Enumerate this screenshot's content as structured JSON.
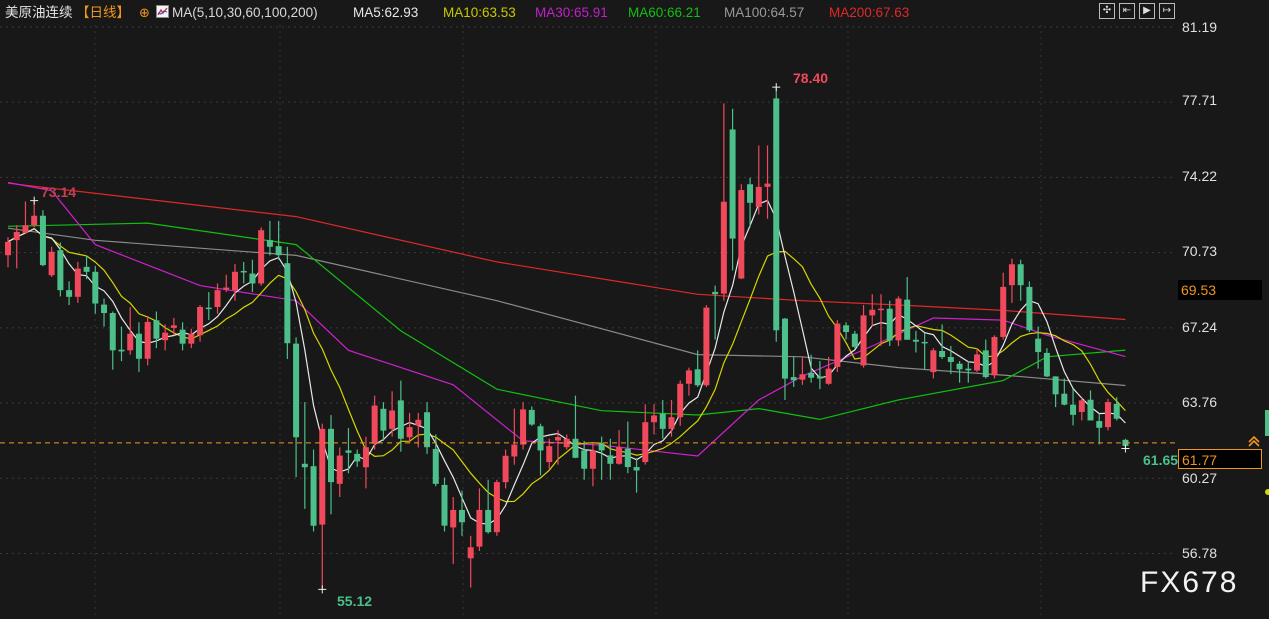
{
  "header": {
    "instrument": "美原油连续",
    "period": "【日线】",
    "period_icon": "circle-plus-icon",
    "indicator_icon": "chart-indicator-icon",
    "indicator": "MA(5,10,30,60,100,200)",
    "ma5": "MA5:62.93",
    "ma10": "MA10:63.53",
    "ma30": "MA30:65.91",
    "ma60": "MA60:66.21",
    "ma100": "MA100:64.57",
    "ma200": "MA200:67.63"
  },
  "toolbar": {
    "icons": [
      "crosshair-icon",
      "zoom-range-icon",
      "play-forward-icon",
      "exit-icon"
    ]
  },
  "colors": {
    "up": "#f0495b",
    "down": "#4cbf8a",
    "ma5": "#e8e8e8",
    "ma10": "#d6d600",
    "ma30": "#d020d0",
    "ma60": "#10c010",
    "ma100": "#8a8a8a",
    "ma200": "#e02828",
    "last_price": "#f0961e"
  },
  "watermark": "FX678",
  "chart_data": {
    "type": "candlestick",
    "title": "",
    "y_ticks": [
      "81.19",
      "77.71",
      "74.22",
      "70.73",
      "67.24",
      "63.76",
      "60.27",
      "56.78"
    ],
    "ylim": [
      53.7,
      82.4
    ],
    "grid": true,
    "candles_ohlc": [
      [
        70.61,
        71.45,
        70.05,
        71.23
      ],
      [
        71.31,
        72.0,
        70.0,
        71.69
      ],
      [
        71.65,
        73.1,
        71.6,
        72.0
      ],
      [
        72.0,
        73.14,
        71.9,
        72.44
      ],
      [
        72.44,
        72.7,
        70.1,
        70.15
      ],
      [
        69.68,
        71.0,
        69.6,
        70.77
      ],
      [
        70.84,
        71.2,
        68.7,
        68.99
      ],
      [
        68.99,
        69.4,
        68.3,
        68.68
      ],
      [
        68.68,
        70.3,
        68.4,
        69.99
      ],
      [
        70.07,
        70.6,
        69.5,
        69.84
      ],
      [
        69.84,
        70.1,
        67.9,
        68.37
      ],
      [
        68.32,
        68.6,
        67.3,
        67.93
      ],
      [
        67.93,
        68.0,
        65.3,
        66.2
      ],
      [
        66.23,
        67.3,
        65.7,
        66.15
      ],
      [
        66.2,
        68.2,
        66.0,
        66.97
      ],
      [
        66.97,
        67.5,
        65.2,
        65.81
      ],
      [
        65.81,
        67.8,
        65.5,
        67.52
      ],
      [
        67.59,
        68.0,
        66.3,
        66.74
      ],
      [
        66.67,
        67.4,
        66.2,
        67.02
      ],
      [
        67.24,
        67.7,
        66.9,
        67.36
      ],
      [
        67.16,
        67.5,
        66.2,
        66.51
      ],
      [
        66.51,
        67.2,
        66.3,
        66.97
      ],
      [
        66.9,
        68.3,
        66.6,
        68.21
      ],
      [
        68.18,
        68.9,
        67.6,
        68.13
      ],
      [
        68.21,
        69.3,
        67.9,
        68.99
      ],
      [
        69.02,
        69.7,
        68.9,
        69.11
      ],
      [
        68.99,
        70.2,
        68.5,
        69.84
      ],
      [
        69.88,
        70.3,
        69.3,
        69.82
      ],
      [
        69.76,
        70.4,
        68.9,
        69.3
      ],
      [
        69.3,
        71.9,
        69.2,
        71.77
      ],
      [
        71.31,
        72.2,
        70.6,
        71.0
      ],
      [
        71.03,
        72.2,
        70.4,
        70.61
      ],
      [
        70.24,
        71.0,
        65.8,
        66.53
      ],
      [
        66.51,
        66.8,
        60.32,
        62.17
      ],
      [
        60.94,
        63.8,
        58.85,
        60.78
      ],
      [
        60.83,
        61.6,
        57.8,
        58.07
      ],
      [
        58.12,
        62.8,
        55.12,
        62.56
      ],
      [
        62.56,
        63.2,
        58.6,
        60.09
      ],
      [
        60.01,
        61.7,
        59.4,
        61.32
      ],
      [
        61.56,
        62.6,
        60.5,
        61.45
      ],
      [
        61.4,
        61.6,
        60.8,
        61.05
      ],
      [
        60.78,
        62.2,
        59.8,
        61.71
      ],
      [
        61.87,
        64.1,
        61.6,
        63.64
      ],
      [
        63.49,
        63.8,
        62.0,
        62.48
      ],
      [
        62.56,
        64.3,
        62.2,
        63.41
      ],
      [
        63.88,
        64.8,
        61.5,
        62.1
      ],
      [
        62.17,
        63.3,
        61.9,
        62.64
      ],
      [
        62.72,
        63.3,
        61.7,
        62.98
      ],
      [
        63.33,
        63.8,
        61.4,
        61.71
      ],
      [
        61.63,
        62.3,
        59.9,
        60.01
      ],
      [
        59.96,
        60.3,
        57.8,
        58.07
      ],
      [
        57.99,
        59.4,
        56.3,
        58.8
      ],
      [
        58.8,
        59.7,
        57.6,
        58.23
      ],
      [
        56.56,
        57.6,
        55.2,
        57.07
      ],
      [
        57.1,
        59.8,
        56.9,
        58.8
      ],
      [
        58.8,
        60.2,
        57.7,
        57.77
      ],
      [
        57.77,
        60.2,
        57.6,
        60.09
      ],
      [
        60.09,
        61.6,
        59.8,
        61.31
      ],
      [
        61.28,
        63.5,
        60.9,
        61.83
      ],
      [
        61.83,
        63.8,
        61.6,
        63.46
      ],
      [
        63.44,
        63.6,
        62.7,
        62.76
      ],
      [
        62.68,
        62.8,
        60.4,
        61.56
      ],
      [
        61.02,
        62.1,
        60.7,
        61.76
      ],
      [
        62.02,
        62.5,
        60.9,
        62.18
      ],
      [
        61.71,
        62.3,
        61.6,
        62.1
      ],
      [
        62.1,
        64.1,
        61.2,
        61.22
      ],
      [
        61.56,
        62.0,
        60.2,
        60.71
      ],
      [
        60.71,
        61.9,
        59.9,
        61.56
      ],
      [
        61.87,
        62.2,
        60.2,
        61.56
      ],
      [
        61.33,
        62.1,
        60.2,
        60.94
      ],
      [
        60.94,
        62.5,
        60.9,
        61.71
      ],
      [
        61.64,
        62.9,
        60.5,
        60.79
      ],
      [
        60.79,
        61.2,
        59.6,
        60.63
      ],
      [
        61.02,
        63.7,
        60.9,
        62.87
      ],
      [
        62.87,
        63.7,
        62.3,
        63.18
      ],
      [
        63.26,
        63.9,
        62.1,
        62.56
      ],
      [
        62.56,
        63.9,
        62.2,
        63.1
      ],
      [
        63.1,
        64.8,
        62.7,
        64.65
      ],
      [
        64.65,
        65.4,
        64.1,
        65.27
      ],
      [
        65.32,
        66.2,
        64.5,
        64.58
      ],
      [
        64.58,
        68.3,
        64.5,
        68.18
      ],
      [
        68.91,
        69.2,
        66.7,
        68.8
      ],
      [
        68.83,
        77.65,
        68.5,
        73.09
      ],
      [
        76.44,
        77.4,
        69.9,
        71.38
      ],
      [
        69.53,
        73.9,
        69.5,
        73.63
      ],
      [
        73.9,
        74.2,
        71.9,
        73.04
      ],
      [
        72.85,
        75.7,
        72.5,
        73.78
      ],
      [
        73.78,
        75.7,
        72.3,
        73.93
      ],
      [
        77.88,
        78.4,
        66.6,
        67.13
      ],
      [
        67.67,
        67.7,
        63.9,
        64.89
      ],
      [
        64.96,
        65.9,
        64.5,
        64.81
      ],
      [
        64.84,
        65.9,
        64.6,
        65.09
      ],
      [
        65.15,
        66.0,
        64.7,
        64.93
      ],
      [
        64.99,
        65.7,
        64.4,
        64.89
      ],
      [
        64.65,
        65.9,
        64.6,
        65.35
      ],
      [
        65.43,
        67.6,
        65.2,
        67.44
      ],
      [
        67.36,
        67.5,
        66.7,
        67.05
      ],
      [
        66.97,
        67.1,
        66.3,
        66.36
      ],
      [
        65.5,
        68.3,
        65.4,
        67.82
      ],
      [
        67.82,
        68.8,
        67.3,
        68.08
      ],
      [
        68.06,
        68.8,
        66.4,
        68.13
      ],
      [
        68.13,
        68.5,
        66.4,
        66.66
      ],
      [
        66.66,
        68.7,
        66.4,
        68.6
      ],
      [
        68.55,
        69.6,
        66.7,
        66.69
      ],
      [
        66.69,
        67.1,
        66.1,
        66.6
      ],
      [
        66.59,
        67.0,
        65.3,
        66.54
      ],
      [
        65.19,
        66.3,
        64.9,
        66.2
      ],
      [
        66.17,
        67.4,
        65.8,
        65.89
      ],
      [
        65.89,
        66.4,
        65.1,
        65.66
      ],
      [
        65.58,
        65.7,
        64.7,
        65.32
      ],
      [
        65.35,
        65.7,
        64.7,
        65.27
      ],
      [
        65.27,
        66.3,
        65.2,
        66.01
      ],
      [
        66.2,
        66.7,
        64.9,
        64.96
      ],
      [
        65.04,
        66.9,
        64.9,
        66.82
      ],
      [
        66.82,
        69.8,
        66.7,
        69.14
      ],
      [
        69.22,
        70.45,
        68.4,
        70.19
      ],
      [
        70.19,
        70.4,
        68.5,
        69.22
      ],
      [
        69.14,
        69.4,
        67.05,
        67.13
      ],
      [
        66.74,
        67.3,
        65.35,
        66.12
      ],
      [
        66.08,
        66.3,
        64.96,
        64.99
      ],
      [
        64.99,
        65.0,
        63.57,
        64.16
      ],
      [
        64.19,
        64.9,
        63.65,
        63.68
      ],
      [
        63.68,
        64.4,
        62.72,
        63.21
      ],
      [
        63.34,
        64.0,
        62.95,
        63.88
      ],
      [
        63.91,
        64.34,
        62.95,
        62.95
      ],
      [
        62.92,
        63.26,
        61.84,
        62.61
      ],
      [
        62.64,
        63.95,
        62.49,
        63.8
      ],
      [
        63.72,
        64.03,
        62.95,
        63.03
      ],
      [
        62.05,
        62.1,
        61.65,
        61.77
      ]
    ],
    "ma_lines": {
      "ma30": [
        [
          0,
          73.98
        ],
        [
          5,
          73.6
        ],
        [
          10,
          71.1
        ],
        [
          22,
          69.2
        ],
        [
          33,
          68.5
        ],
        [
          39,
          66.2
        ],
        [
          51,
          64.6
        ],
        [
          59,
          62.0
        ],
        [
          68,
          61.8
        ],
        [
          79,
          61.3
        ],
        [
          86,
          63.9
        ],
        [
          91,
          65.0
        ],
        [
          99,
          66.4
        ],
        [
          106,
          67.7
        ],
        [
          114,
          67.6
        ],
        [
          119,
          66.9
        ],
        [
          128,
          65.91
        ]
      ],
      "ma60": [
        [
          0,
          71.95
        ],
        [
          16,
          72.1
        ],
        [
          33,
          71.1
        ],
        [
          45,
          67.1
        ],
        [
          56,
          64.4
        ],
        [
          68,
          63.4
        ],
        [
          79,
          63.2
        ],
        [
          86,
          63.5
        ],
        [
          93,
          63.0
        ],
        [
          102,
          63.9
        ],
        [
          114,
          64.8
        ],
        [
          119,
          65.9
        ],
        [
          128,
          66.21
        ]
      ],
      "ma100": [
        [
          0,
          71.86
        ],
        [
          10,
          71.3
        ],
        [
          33,
          70.6
        ],
        [
          56,
          68.5
        ],
        [
          79,
          66.0
        ],
        [
          91,
          65.9
        ],
        [
          102,
          65.4
        ],
        [
          114,
          65.05
        ],
        [
          128,
          64.57
        ]
      ],
      "ma200": [
        [
          0,
          73.95
        ],
        [
          33,
          72.4
        ],
        [
          56,
          70.3
        ],
        [
          79,
          68.8
        ],
        [
          91,
          68.5
        ],
        [
          102,
          68.3
        ],
        [
          114,
          68.05
        ],
        [
          128,
          67.63
        ]
      ]
    },
    "annotations": {
      "high_early": "73.14",
      "high_max": "78.40",
      "low_min": "55.12",
      "low_recent": "61.65"
    },
    "last_price": "61.77",
    "marker_price": "69.53"
  }
}
